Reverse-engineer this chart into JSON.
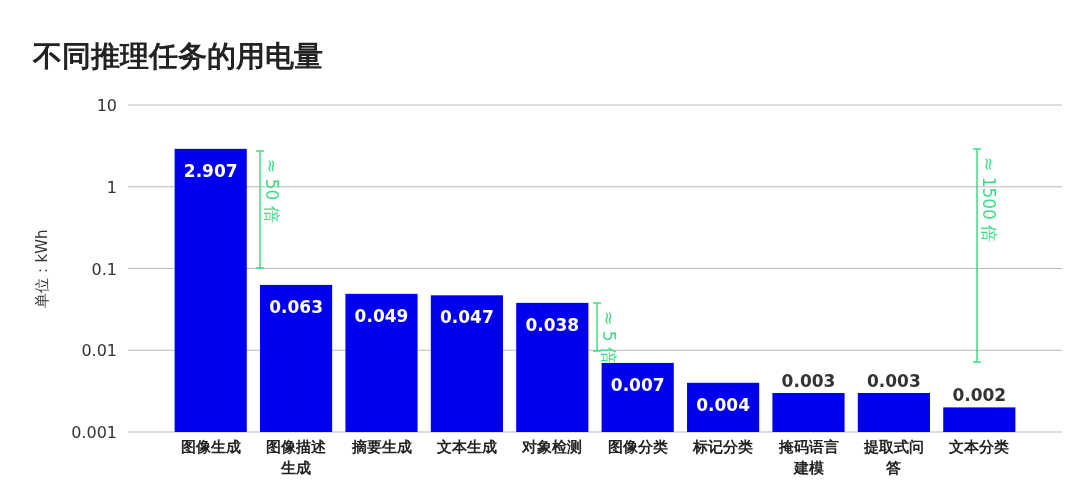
{
  "chart_data": {
    "type": "bar",
    "title": "不同推理任务的用电量",
    "ylabel": "单位：kWh",
    "categories": [
      "图像生成",
      "图像描述生成",
      "摘要生成",
      "文本生成",
      "对象检测",
      "图像分类",
      "标记分类",
      "掩码语言建模",
      "提取式问答",
      "文本分类"
    ],
    "values": [
      2.907,
      0.063,
      0.049,
      0.047,
      0.038,
      0.007,
      0.004,
      0.003,
      0.003,
      0.002
    ],
    "color": "#0000ee",
    "log": "y",
    "ylim": [
      0.001,
      10
    ],
    "yticks": [
      10,
      1,
      0.1,
      0.01,
      0.001
    ],
    "grid": "y",
    "data_labels": true,
    "annotations": [
      "≈ 50 倍",
      "≈ 5 倍",
      "≈ 1500 倍"
    ]
  }
}
